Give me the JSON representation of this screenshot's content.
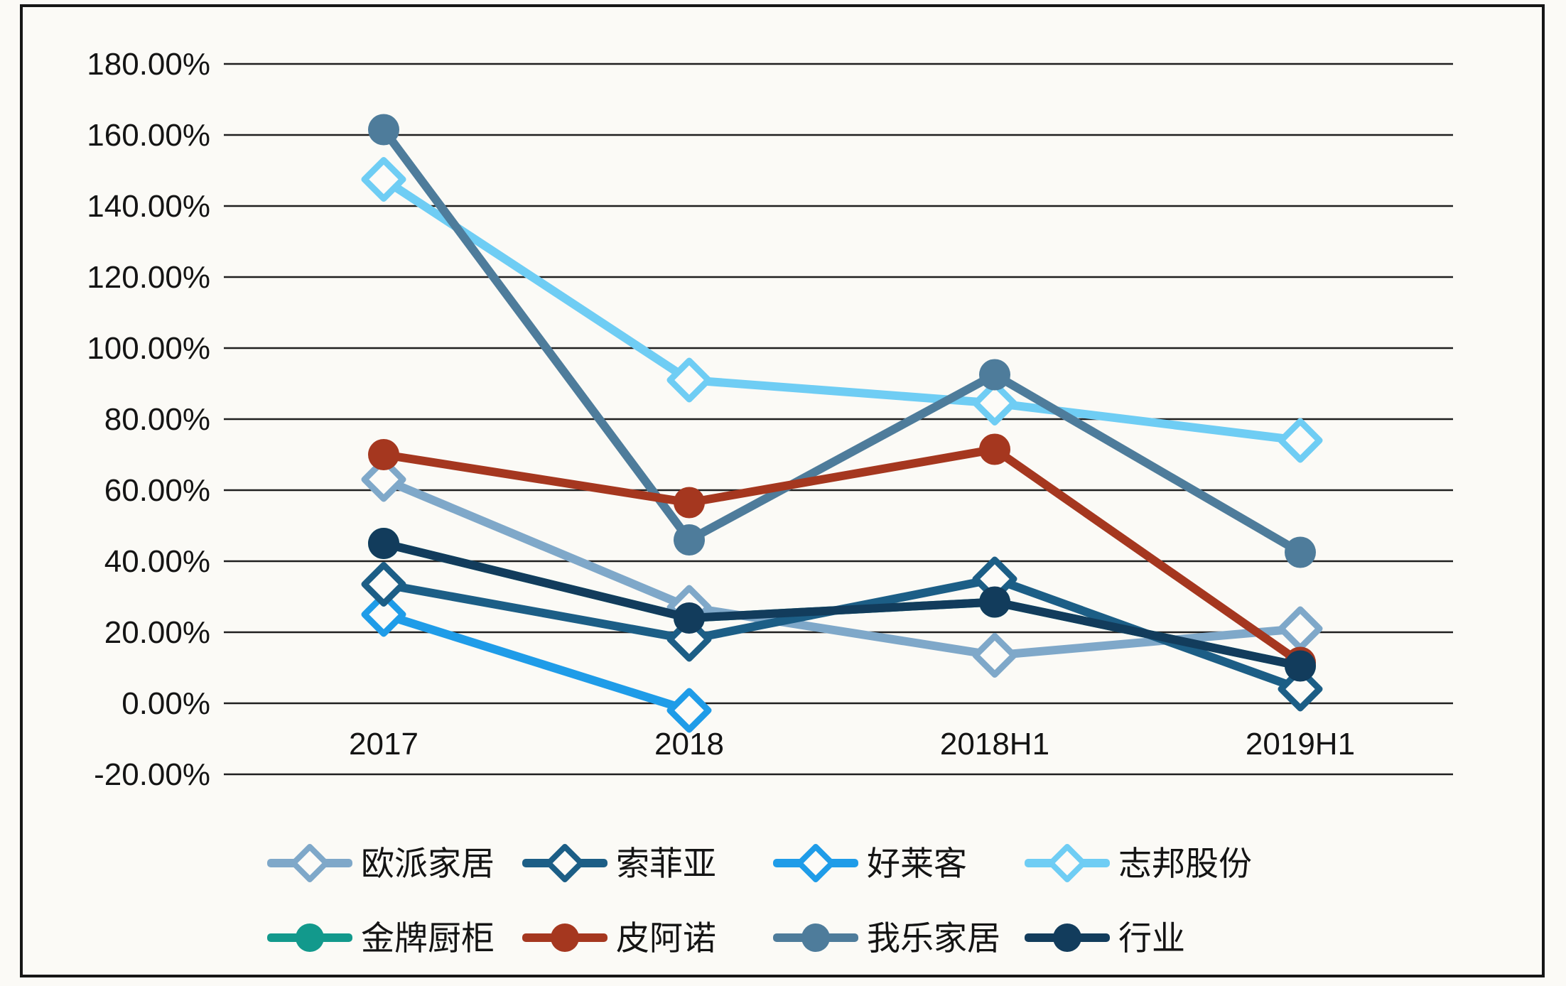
{
  "style": {
    "background": "#FBFAF6",
    "border_color": "#161616",
    "grid_color": "#1F1F1F",
    "text_color": "#141414",
    "marker_fill_open": "#FCFBF8"
  },
  "chart_data": {
    "type": "line",
    "title": "",
    "xlabel": "",
    "ylabel": "",
    "categories": [
      "2017",
      "2018",
      "2018H1",
      "2019H1"
    ],
    "series": [
      {
        "name": "欧派家居",
        "color": "#7FA8C9",
        "marker": "open-diamond",
        "values": [
          63,
          27,
          13.5,
          21
        ]
      },
      {
        "name": "索菲亚",
        "color": "#1C5E86",
        "marker": "open-diamond",
        "values": [
          33.5,
          18,
          35,
          4
        ]
      },
      {
        "name": "好莱客",
        "color": "#1F9CE8",
        "marker": "open-diamond",
        "values": [
          25,
          -2,
          null,
          null
        ]
      },
      {
        "name": "志邦股份",
        "color": "#6FCDF4",
        "marker": "open-diamond",
        "values": [
          147.5,
          91,
          84.5,
          74
        ]
      },
      {
        "name": "金牌厨柜",
        "color": "#12998C",
        "marker": "filled-circle",
        "values": [
          45,
          24,
          28.5,
          10.5
        ]
      },
      {
        "name": "皮阿诺",
        "color": "#A5371F",
        "marker": "filled-circle",
        "values": [
          70,
          56.5,
          71.5,
          11.5
        ]
      },
      {
        "name": "我乐家居",
        "color": "#4E7C9B",
        "marker": "filled-circle",
        "values": [
          161.5,
          46,
          92.5,
          42.5
        ]
      },
      {
        "name": "行业",
        "color": "#123C5C",
        "marker": "filled-circle",
        "values": [
          45,
          24,
          28.5,
          10.5
        ]
      }
    ],
    "ylim": [
      -20,
      180
    ],
    "y_step": 20,
    "y_tick_labels": [
      "180.00%",
      "160.00%",
      "140.00%",
      "120.00%",
      "100.00%",
      "80.00%",
      "60.00%",
      "40.00%",
      "20.00%",
      "0.00%",
      "-20.00%"
    ],
    "grid": true,
    "legend_position": "bottom",
    "legend_rows": [
      [
        "欧派家居",
        "索菲亚",
        "好莱客",
        "志邦股份"
      ],
      [
        "金牌厨柜",
        "皮阿诺",
        "我乐家居",
        "行业"
      ]
    ]
  }
}
